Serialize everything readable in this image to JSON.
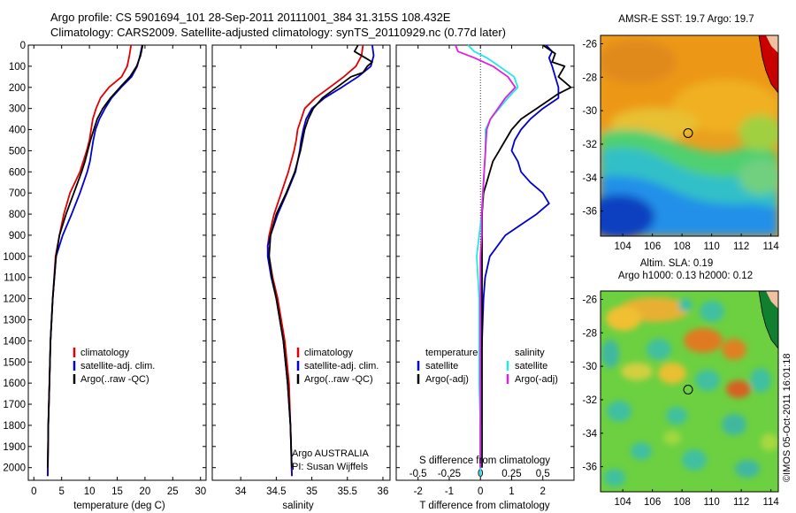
{
  "header": {
    "line1": "Argo profile: CS 5901694_101 28-Sep-2011 20111001_384 31.315S 108.432E",
    "line2": "Climatology: CARS2009. Satellite-adjusted climatology: synTS_20110929.nc (0.77d later)"
  },
  "colors": {
    "climatology": "#e00000",
    "satellite": "#0000d0",
    "argo": "#000000",
    "sat_s": "#22e8e8",
    "argo_s": "#e020e0"
  },
  "depth_axis": {
    "ticks": [
      0,
      100,
      200,
      300,
      400,
      500,
      600,
      700,
      800,
      900,
      1000,
      1100,
      1200,
      1300,
      1400,
      1500,
      1600,
      1700,
      1800,
      1900,
      2000
    ],
    "range": [
      0,
      2060
    ]
  },
  "chart_data": [
    {
      "type": "line",
      "name": "temperature",
      "xlabel": "temperature (deg C)",
      "ylabel": "depth",
      "xlim": [
        -1,
        31
      ],
      "xticks": [
        0,
        5,
        10,
        15,
        20,
        25,
        30
      ],
      "legend": [
        "climatology",
        "satellite-adj. clim.",
        "Argo(..raw -QC)"
      ],
      "series": [
        {
          "name": "climatology",
          "depth": [
            0,
            50,
            100,
            150,
            200,
            250,
            300,
            350,
            400,
            450,
            500,
            550,
            600,
            700,
            800,
            900,
            1000,
            1200,
            1400,
            1600,
            1800,
            2040
          ],
          "values": [
            17.5,
            17.2,
            16.8,
            15.8,
            13.5,
            12.0,
            11.2,
            10.6,
            10.3,
            10.0,
            9.5,
            8.9,
            8.3,
            6.5,
            5.4,
            4.6,
            3.9,
            3.4,
            3.0,
            2.8,
            2.6,
            2.5
          ]
        },
        {
          "name": "satellite-adj. clim.",
          "depth": [
            0,
            50,
            100,
            150,
            200,
            250,
            300,
            350,
            400,
            450,
            500,
            550,
            600,
            700,
            800,
            900,
            1000,
            1200,
            1400,
            1600,
            1800,
            2040
          ],
          "values": [
            19.5,
            19.1,
            18.6,
            17.6,
            15.7,
            14.0,
            12.8,
            11.8,
            11.1,
            10.7,
            10.4,
            10.1,
            9.6,
            8.3,
            6.8,
            5.2,
            4.0,
            3.4,
            3.0,
            2.8,
            2.6,
            2.5
          ]
        },
        {
          "name": "Argo(..raw -QC)",
          "depth": [
            0,
            50,
            100,
            150,
            200,
            250,
            300,
            350,
            400,
            450,
            500,
            550,
            600,
            700,
            800,
            900,
            1000,
            1200,
            1400,
            1600,
            1800,
            2000
          ],
          "values": [
            19.6,
            19.2,
            18.5,
            17.3,
            15.5,
            13.8,
            12.4,
            11.4,
            10.8,
            10.2,
            9.7,
            9.2,
            8.6,
            7.2,
            5.8,
            4.6,
            4.0,
            3.4,
            3.0,
            2.8,
            2.6,
            2.5
          ]
        }
      ]
    },
    {
      "type": "line",
      "name": "salinity",
      "xlabel": "salinity",
      "ylabel": "depth",
      "xlim": [
        33.6,
        36.1
      ],
      "xticks": [
        34,
        34.5,
        35,
        35.5,
        36
      ],
      "legend": [
        "climatology",
        "satellite-adj. clim.",
        "Argo(..raw -QC)"
      ],
      "annotation": [
        "Argo AUSTRALIA",
        "PI: Susan Wijffels"
      ],
      "series": [
        {
          "name": "climatology",
          "depth": [
            0,
            50,
            100,
            150,
            200,
            250,
            300,
            350,
            400,
            450,
            500,
            600,
            700,
            800,
            900,
            950,
            1000,
            1100,
            1200,
            1400,
            1600,
            1800,
            2040
          ],
          "values": [
            35.72,
            35.7,
            35.62,
            35.45,
            35.25,
            35.05,
            34.9,
            34.85,
            34.8,
            34.78,
            34.75,
            34.67,
            34.57,
            34.47,
            34.4,
            34.38,
            34.4,
            34.45,
            34.52,
            34.62,
            34.68,
            34.7,
            34.72
          ]
        },
        {
          "name": "satellite-adj. clim.",
          "depth": [
            0,
            50,
            100,
            150,
            200,
            250,
            300,
            350,
            400,
            450,
            500,
            600,
            700,
            800,
            900,
            950,
            1000,
            1100,
            1200,
            1400,
            1600,
            1800,
            2040
          ],
          "values": [
            35.85,
            35.87,
            35.83,
            35.65,
            35.42,
            35.18,
            35.0,
            34.92,
            34.88,
            34.85,
            34.83,
            34.77,
            34.65,
            34.52,
            34.42,
            34.38,
            34.38,
            34.43,
            34.5,
            34.6,
            34.66,
            34.7,
            34.72
          ]
        },
        {
          "name": "Argo(..raw -QC)",
          "depth": [
            0,
            30,
            60,
            80,
            100,
            130,
            150,
            200,
            250,
            300,
            350,
            400,
            500,
            600,
            700,
            800,
            900,
            1000,
            1100,
            1200,
            1400,
            1600,
            1800,
            2000
          ],
          "values": [
            35.65,
            35.6,
            35.75,
            35.85,
            35.78,
            35.72,
            35.55,
            35.35,
            35.15,
            35.02,
            34.95,
            34.9,
            34.84,
            34.76,
            34.64,
            34.5,
            34.42,
            34.4,
            34.44,
            34.5,
            34.6,
            34.66,
            34.7,
            34.72
          ]
        }
      ]
    },
    {
      "type": "line",
      "name": "differences",
      "xlabel": "T difference from climatology",
      "xlabel_top": "S difference from climatology",
      "xlim": [
        -2.7,
        3.0
      ],
      "xticks": [
        -2,
        -1,
        0,
        1,
        2
      ],
      "xticks_top": [
        -0.5,
        -0.25,
        0,
        0.25,
        0.5
      ],
      "xticks_top_labels": [
        "-0.5",
        "-0.25",
        "0",
        "0.25",
        "0.5"
      ],
      "legend_left_title": "temperature",
      "legend_right_title": "salinity",
      "legend": [
        "satellite",
        "Argo(-adj)",
        "satellite",
        "Argo(-adj)"
      ],
      "series": [
        {
          "name": "temperature satellite",
          "depth": [
            0,
            30,
            60,
            100,
            150,
            200,
            250,
            300,
            350,
            400,
            450,
            500,
            550,
            600,
            650,
            700,
            750,
            800,
            850,
            900,
            1000,
            1100,
            1200,
            1400,
            1600,
            1800,
            2040
          ],
          "values": [
            2.1,
            2.3,
            2.2,
            2.3,
            2.4,
            2.5,
            2.5,
            2.0,
            1.6,
            1.3,
            1.1,
            1.0,
            1.2,
            1.3,
            1.6,
            2.0,
            2.2,
            1.8,
            1.3,
            0.8,
            0.3,
            0.15,
            0.1,
            0.05,
            0.0,
            0.0,
            0.0
          ]
        },
        {
          "name": "temperature Argo(-adj)",
          "depth": [
            0,
            40,
            80,
            100,
            150,
            200,
            230,
            250,
            300,
            350,
            400,
            450,
            500,
            550,
            600,
            650,
            700,
            800,
            900,
            1000,
            1200,
            1400,
            1600,
            1800,
            2000
          ],
          "values": [
            2.0,
            2.4,
            2.3,
            2.7,
            2.5,
            2.9,
            2.5,
            2.3,
            1.8,
            1.3,
            1.0,
            0.8,
            0.6,
            0.4,
            0.3,
            0.2,
            0.1,
            0.05,
            0.05,
            0.05,
            0.05,
            0.05,
            0.05,
            0.05,
            0.05
          ]
        },
        {
          "name": "salinity satellite",
          "depth": [
            0,
            30,
            60,
            100,
            150,
            200,
            250,
            300,
            350,
            400,
            500,
            600,
            700,
            800,
            900,
            1000,
            1100,
            1200,
            1400,
            1600,
            1800,
            2040
          ],
          "values": [
            -0.1,
            -0.05,
            0.05,
            0.15,
            0.27,
            0.3,
            0.22,
            0.15,
            0.08,
            0.04,
            0.04,
            0.03,
            0.02,
            0.01,
            -0.01,
            -0.03,
            -0.02,
            -0.01,
            -0.01,
            -0.01,
            0.0,
            0.0
          ]
        },
        {
          "name": "salinity Argo(-adj)",
          "depth": [
            0,
            30,
            60,
            100,
            150,
            200,
            250,
            300,
            350,
            400,
            500,
            600,
            700,
            800,
            900,
            1000,
            1100,
            1200,
            1400,
            1600,
            1800,
            2000
          ],
          "values": [
            -0.2,
            -0.18,
            -0.05,
            0.1,
            0.22,
            0.28,
            0.2,
            0.14,
            0.08,
            0.05,
            0.04,
            0.03,
            0.02,
            0.01,
            0.01,
            0.0,
            0.0,
            0.0,
            0.0,
            0.0,
            0.0,
            0.0
          ]
        }
      ]
    },
    {
      "type": "heatmap",
      "name": "sst-map",
      "title": "AMSR-E SST: 19.7 Argo: 19.7",
      "xlim": [
        102.5,
        114.5
      ],
      "ylim": [
        -37.5,
        -25.5
      ],
      "xticks": [
        104,
        106,
        108,
        110,
        112,
        114
      ],
      "yticks": [
        -26,
        -28,
        -30,
        -32,
        -34,
        -36
      ],
      "marker": {
        "lon": 108.43,
        "lat": -31.3
      }
    },
    {
      "type": "heatmap",
      "name": "sla-map",
      "title": "Altim. SLA: 0.19",
      "subtitle": "Argo h1000: 0.13 h2000: 0.12",
      "xlim": [
        102.5,
        114.5
      ],
      "ylim": [
        -37.5,
        -25.5
      ],
      "xticks": [
        104,
        106,
        108,
        110,
        112,
        114
      ],
      "yticks": [
        -26,
        -28,
        -30,
        -32,
        -34,
        -36
      ],
      "marker": {
        "lon": 108.43,
        "lat": -31.3
      }
    }
  ],
  "credit": "©IMOS 05-Oct-2011 16:01:18"
}
